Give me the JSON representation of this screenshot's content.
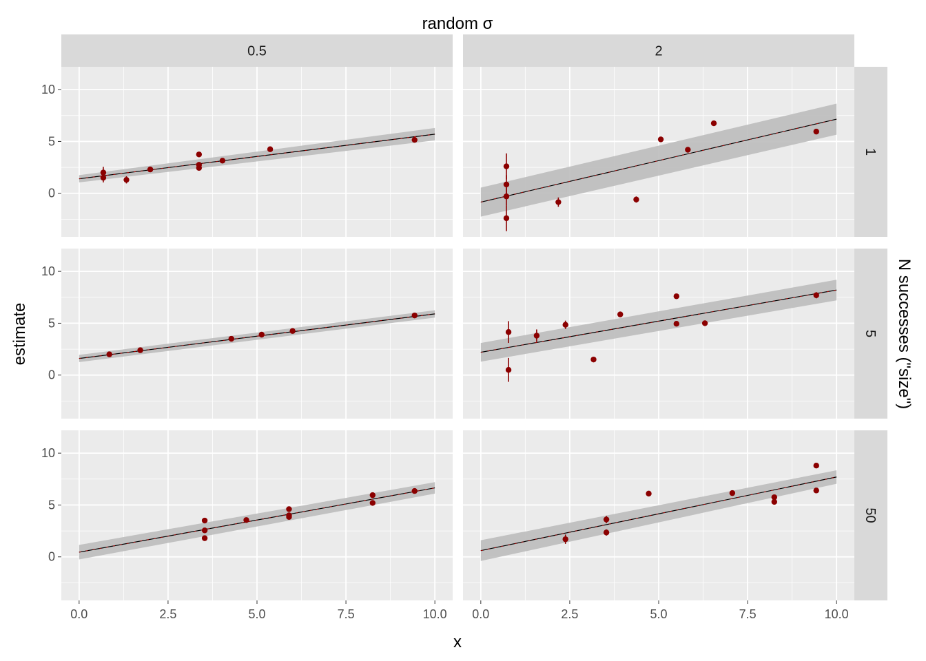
{
  "chart_data": {
    "type": "scatter",
    "title": "",
    "xlabel": "x",
    "ylabel": "estimate",
    "col_facet_title": "random σ",
    "row_facet_title": "N successes (\"size\")",
    "col_facets": [
      "0.5",
      "2"
    ],
    "row_facets": [
      "1",
      "5",
      "50"
    ],
    "xlim": [
      -0.5,
      10.5
    ],
    "ylim": [
      -4.2,
      12.2
    ],
    "x_ticks": [
      0,
      2.5,
      5,
      7.5,
      10
    ],
    "x_tick_labels": [
      "0.0",
      "2.5",
      "5.0",
      "7.5",
      "10.0"
    ],
    "y_ticks": [
      0,
      5,
      10
    ],
    "y_tick_labels": [
      "0",
      "5",
      "10"
    ],
    "grid": true,
    "colors": {
      "panel_bg": "#ebebeb",
      "strip_bg": "#d9d9d9",
      "points": "#8b0000",
      "band": "#bdbdbd",
      "line": "#000000",
      "line_overlay": "#c00000"
    },
    "panels": [
      {
        "row": "1",
        "col": "0.5",
        "fit": {
          "intercept": 1.4,
          "slope": 0.43,
          "se_low": 0.35,
          "se_high": 0.6
        },
        "points": [
          {
            "x": 0.68,
            "y": 2.0,
            "err": 0.55
          },
          {
            "x": 0.68,
            "y": 1.5,
            "err": 0.45
          },
          {
            "x": 1.33,
            "y": 1.3,
            "err": 0.35
          },
          {
            "x": 2.0,
            "y": 2.3,
            "err": 0.15
          },
          {
            "x": 3.37,
            "y": 3.75,
            "err": 0.12
          },
          {
            "x": 3.37,
            "y": 2.75,
            "err": 0.12
          },
          {
            "x": 3.37,
            "y": 2.45,
            "err": 0.12
          },
          {
            "x": 4.03,
            "y": 3.15,
            "err": 0.12
          },
          {
            "x": 5.37,
            "y": 4.25,
            "err": 0.12
          },
          {
            "x": 9.43,
            "y": 5.15,
            "err": 0.12
          }
        ]
      },
      {
        "row": "1",
        "col": "2",
        "fit": {
          "intercept": -0.85,
          "slope": 0.8,
          "se_low": 1.4,
          "se_high": 1.5
        },
        "points": [
          {
            "x": 0.72,
            "y": 2.6,
            "err": 1.25
          },
          {
            "x": 0.72,
            "y": 0.85,
            "err": 0.9
          },
          {
            "x": 0.72,
            "y": -0.3,
            "err": 0.85
          },
          {
            "x": 0.72,
            "y": -2.4,
            "err": 1.25
          },
          {
            "x": 2.18,
            "y": -0.85,
            "err": 0.45
          },
          {
            "x": 4.37,
            "y": -0.6,
            "err": 0.3
          },
          {
            "x": 5.06,
            "y": 5.2,
            "err": 0.15
          },
          {
            "x": 5.82,
            "y": 4.2,
            "err": 0.2
          },
          {
            "x": 6.55,
            "y": 6.75,
            "err": 0.15
          },
          {
            "x": 9.43,
            "y": 5.95,
            "err": 0.25
          }
        ]
      },
      {
        "row": "5",
        "col": "0.5",
        "fit": {
          "intercept": 1.6,
          "slope": 0.43,
          "se_low": 0.35,
          "se_high": 0.35
        },
        "points": [
          {
            "x": 0.85,
            "y": 2.0,
            "err": 0.1
          },
          {
            "x": 1.72,
            "y": 2.4,
            "err": 0.1
          },
          {
            "x": 4.28,
            "y": 3.5,
            "err": 0.1
          },
          {
            "x": 5.13,
            "y": 3.9,
            "err": 0.1
          },
          {
            "x": 6.0,
            "y": 4.25,
            "err": 0.1
          },
          {
            "x": 9.43,
            "y": 5.75,
            "err": 0.1
          }
        ]
      },
      {
        "row": "5",
        "col": "2",
        "fit": {
          "intercept": 2.2,
          "slope": 0.6,
          "se_low": 0.9,
          "se_high": 1.0
        },
        "points": [
          {
            "x": 0.78,
            "y": 4.15,
            "err": 1.05
          },
          {
            "x": 0.78,
            "y": 0.5,
            "err": 1.15
          },
          {
            "x": 1.57,
            "y": 3.8,
            "err": 0.6
          },
          {
            "x": 2.38,
            "y": 4.85,
            "err": 0.4
          },
          {
            "x": 3.17,
            "y": 1.5,
            "err": 0.25
          },
          {
            "x": 3.92,
            "y": 5.85,
            "err": 0.2
          },
          {
            "x": 5.5,
            "y": 7.6,
            "err": 0.15
          },
          {
            "x": 5.5,
            "y": 4.95,
            "err": 0.15
          },
          {
            "x": 6.3,
            "y": 5.0,
            "err": 0.15
          },
          {
            "x": 9.43,
            "y": 7.7,
            "err": 0.3
          }
        ]
      },
      {
        "row": "50",
        "col": "0.5",
        "fit": {
          "intercept": 0.45,
          "slope": 0.62,
          "se_low": 0.7,
          "se_high": 0.55
        },
        "points": [
          {
            "x": 3.53,
            "y": 3.5,
            "err": 0.15
          },
          {
            "x": 3.53,
            "y": 2.55,
            "err": 0.12
          },
          {
            "x": 3.53,
            "y": 1.8,
            "err": 0.12
          },
          {
            "x": 4.7,
            "y": 3.55,
            "err": 0.1
          },
          {
            "x": 5.9,
            "y": 4.6,
            "err": 0.1
          },
          {
            "x": 5.9,
            "y": 4.0,
            "err": 0.1
          },
          {
            "x": 5.9,
            "y": 3.85,
            "err": 0.1
          },
          {
            "x": 8.25,
            "y": 5.95,
            "err": 0.1
          },
          {
            "x": 8.25,
            "y": 5.2,
            "err": 0.1
          },
          {
            "x": 9.43,
            "y": 6.35,
            "err": 0.1
          }
        ]
      },
      {
        "row": "50",
        "col": "2",
        "fit": {
          "intercept": 0.6,
          "slope": 0.71,
          "se_low": 1.0,
          "se_high": 0.65
        },
        "points": [
          {
            "x": 2.38,
            "y": 1.7,
            "err": 0.45
          },
          {
            "x": 3.53,
            "y": 3.6,
            "err": 0.35
          },
          {
            "x": 3.53,
            "y": 2.35,
            "err": 0.3
          },
          {
            "x": 4.72,
            "y": 6.1,
            "err": 0.15
          },
          {
            "x": 7.07,
            "y": 6.15,
            "err": 0.15
          },
          {
            "x": 8.25,
            "y": 5.75,
            "err": 0.15
          },
          {
            "x": 8.25,
            "y": 5.3,
            "err": 0.15
          },
          {
            "x": 9.43,
            "y": 8.8,
            "err": 0.15
          },
          {
            "x": 9.43,
            "y": 6.4,
            "err": 0.15
          }
        ]
      }
    ]
  }
}
